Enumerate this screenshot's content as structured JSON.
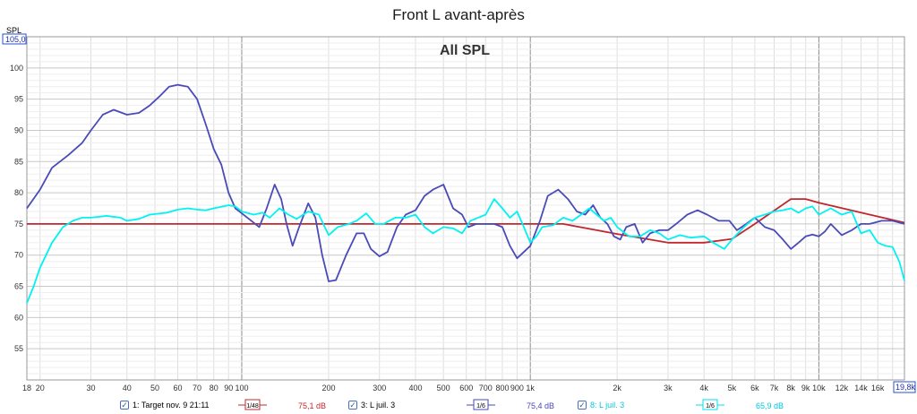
{
  "window_title": "Front L avant-après",
  "chart_data": {
    "type": "line",
    "title": "All SPL",
    "ylabel": "SPL",
    "x_scale": "log",
    "xlim": [
      18,
      19800
    ],
    "ylim": [
      50,
      105
    ],
    "y_max_box": "105,0",
    "grid": true,
    "y_ticks": [
      55,
      60,
      65,
      70,
      75,
      80,
      85,
      90,
      95,
      100
    ],
    "x_ticks": [
      {
        "v": 18,
        "label": "18"
      },
      {
        "v": 20,
        "label": "20"
      },
      {
        "v": 30,
        "label": "30"
      },
      {
        "v": 40,
        "label": "40"
      },
      {
        "v": 50,
        "label": "50"
      },
      {
        "v": 60,
        "label": "60"
      },
      {
        "v": 70,
        "label": "70"
      },
      {
        "v": 80,
        "label": "80"
      },
      {
        "v": 90,
        "label": "90"
      },
      {
        "v": 100,
        "label": "100"
      },
      {
        "v": 200,
        "label": "200"
      },
      {
        "v": 300,
        "label": "300"
      },
      {
        "v": 400,
        "label": "400"
      },
      {
        "v": 500,
        "label": "500"
      },
      {
        "v": 600,
        "label": "600"
      },
      {
        "v": 700,
        "label": "700"
      },
      {
        "v": 800,
        "label": "800"
      },
      {
        "v": 900,
        "label": "900"
      },
      {
        "v": 1000,
        "label": "1k"
      },
      {
        "v": 2000,
        "label": "2k"
      },
      {
        "v": 3000,
        "label": "3k"
      },
      {
        "v": 4000,
        "label": "4k"
      },
      {
        "v": 5000,
        "label": "5k"
      },
      {
        "v": 6000,
        "label": "6k"
      },
      {
        "v": 7000,
        "label": "7k"
      },
      {
        "v": 8000,
        "label": "8k"
      },
      {
        "v": 9000,
        "label": "9k"
      },
      {
        "v": 10000,
        "label": "10k"
      },
      {
        "v": 12000,
        "label": "12k"
      },
      {
        "v": 14000,
        "label": "14k"
      },
      {
        "v": 16000,
        "label": "16k"
      }
    ],
    "x_max_box": "19,8k",
    "series": [
      {
        "name": "1: Target nov. 9 21:11",
        "color": "#c0282d",
        "smoothing": "1/48",
        "value": "75,1 dB",
        "points": [
          [
            18,
            75
          ],
          [
            1300,
            75
          ],
          [
            2000,
            73.4
          ],
          [
            3000,
            72
          ],
          [
            4000,
            72
          ],
          [
            5000,
            72.6
          ],
          [
            6000,
            75
          ],
          [
            8000,
            79
          ],
          [
            9000,
            79
          ],
          [
            10000,
            78.4
          ],
          [
            15000,
            76.5
          ],
          [
            19800,
            75.2
          ]
        ]
      },
      {
        "name": "3: L juil. 3",
        "color": "#4a4ab8",
        "smoothing": "1/6",
        "value": "75,4 dB",
        "points": [
          [
            18,
            77.5
          ],
          [
            20,
            80.5
          ],
          [
            22,
            84
          ],
          [
            25,
            86
          ],
          [
            28,
            88
          ],
          [
            30,
            90
          ],
          [
            33,
            92.5
          ],
          [
            36,
            93.3
          ],
          [
            40,
            92.5
          ],
          [
            44,
            92.8
          ],
          [
            48,
            94
          ],
          [
            52,
            95.5
          ],
          [
            56,
            97
          ],
          [
            60,
            97.3
          ],
          [
            65,
            97
          ],
          [
            70,
            95
          ],
          [
            75,
            91
          ],
          [
            80,
            87
          ],
          [
            85,
            84.5
          ],
          [
            90,
            80
          ],
          [
            95,
            77.5
          ],
          [
            100,
            76.7
          ],
          [
            108,
            75.5
          ],
          [
            115,
            74.5
          ],
          [
            122,
            77.5
          ],
          [
            130,
            81.3
          ],
          [
            137,
            79
          ],
          [
            143,
            75
          ],
          [
            150,
            71.5
          ],
          [
            158,
            74.5
          ],
          [
            170,
            78.3
          ],
          [
            180,
            76
          ],
          [
            190,
            70
          ],
          [
            200,
            65.8
          ],
          [
            212,
            66
          ],
          [
            230,
            70
          ],
          [
            250,
            73.5
          ],
          [
            265,
            73.5
          ],
          [
            280,
            71
          ],
          [
            300,
            69.8
          ],
          [
            320,
            70.5
          ],
          [
            345,
            74.5
          ],
          [
            370,
            76.5
          ],
          [
            400,
            77.2
          ],
          [
            430,
            79.5
          ],
          [
            460,
            80.5
          ],
          [
            500,
            81.3
          ],
          [
            540,
            77.5
          ],
          [
            580,
            76.5
          ],
          [
            610,
            74.5
          ],
          [
            650,
            75
          ],
          [
            700,
            75
          ],
          [
            750,
            75
          ],
          [
            800,
            74.5
          ],
          [
            850,
            71.5
          ],
          [
            900,
            69.5
          ],
          [
            950,
            70.5
          ],
          [
            1000,
            71.5
          ],
          [
            1080,
            75.5
          ],
          [
            1150,
            79.5
          ],
          [
            1250,
            80.5
          ],
          [
            1350,
            79
          ],
          [
            1450,
            77
          ],
          [
            1550,
            76.5
          ],
          [
            1650,
            78
          ],
          [
            1750,
            76
          ],
          [
            1850,
            75
          ],
          [
            1950,
            73
          ],
          [
            2050,
            72.5
          ],
          [
            2150,
            74.5
          ],
          [
            2300,
            75
          ],
          [
            2450,
            72
          ],
          [
            2600,
            73.5
          ],
          [
            2800,
            74
          ],
          [
            3000,
            74
          ],
          [
            3200,
            75
          ],
          [
            3500,
            76.5
          ],
          [
            3800,
            77.2
          ],
          [
            4100,
            76.5
          ],
          [
            4500,
            75.5
          ],
          [
            4900,
            75.5
          ],
          [
            5200,
            74
          ],
          [
            5600,
            75
          ],
          [
            6000,
            76
          ],
          [
            6500,
            74.5
          ],
          [
            7000,
            74
          ],
          [
            7500,
            72.5
          ],
          [
            8000,
            71
          ],
          [
            8500,
            72
          ],
          [
            9000,
            73
          ],
          [
            9500,
            73.3
          ],
          [
            10000,
            73
          ],
          [
            10500,
            73.8
          ],
          [
            11000,
            75
          ],
          [
            12000,
            73.2
          ],
          [
            13000,
            74
          ],
          [
            14000,
            75
          ],
          [
            15000,
            75
          ],
          [
            16500,
            75.5
          ],
          [
            18000,
            75.5
          ],
          [
            19800,
            75
          ]
        ]
      },
      {
        "name": "8: L juil. 3",
        "color": "#00f2f2",
        "smoothing": "1/6",
        "value": "65,9 dB",
        "points": [
          [
            18,
            62.3
          ],
          [
            19,
            65
          ],
          [
            20,
            68
          ],
          [
            22,
            72
          ],
          [
            24,
            74.5
          ],
          [
            26,
            75.5
          ],
          [
            28,
            76
          ],
          [
            30,
            76
          ],
          [
            34,
            76.3
          ],
          [
            38,
            76
          ],
          [
            40,
            75.5
          ],
          [
            44,
            75.8
          ],
          [
            48,
            76.5
          ],
          [
            55,
            76.8
          ],
          [
            60,
            77.3
          ],
          [
            65,
            77.5
          ],
          [
            70,
            77.3
          ],
          [
            75,
            77.2
          ],
          [
            80,
            77.5
          ],
          [
            90,
            78
          ],
          [
            95,
            77.8
          ],
          [
            100,
            77
          ],
          [
            110,
            76.5
          ],
          [
            118,
            76.8
          ],
          [
            125,
            76
          ],
          [
            135,
            77.5
          ],
          [
            145,
            76.5
          ],
          [
            155,
            75.8
          ],
          [
            170,
            77
          ],
          [
            185,
            76.5
          ],
          [
            200,
            73.2
          ],
          [
            215,
            74.5
          ],
          [
            235,
            75
          ],
          [
            250,
            75.5
          ],
          [
            270,
            76.7
          ],
          [
            290,
            75
          ],
          [
            310,
            75
          ],
          [
            340,
            76
          ],
          [
            370,
            76
          ],
          [
            400,
            76.5
          ],
          [
            430,
            74.5
          ],
          [
            460,
            73.5
          ],
          [
            500,
            74.5
          ],
          [
            540,
            74.3
          ],
          [
            580,
            73.5
          ],
          [
            620,
            75.5
          ],
          [
            660,
            76
          ],
          [
            700,
            76.5
          ],
          [
            750,
            79
          ],
          [
            800,
            77.5
          ],
          [
            850,
            76
          ],
          [
            900,
            77
          ],
          [
            950,
            74.5
          ],
          [
            1000,
            72
          ],
          [
            1050,
            73
          ],
          [
            1100,
            74.5
          ],
          [
            1200,
            74.8
          ],
          [
            1300,
            76
          ],
          [
            1400,
            75.5
          ],
          [
            1500,
            76.5
          ],
          [
            1600,
            77.5
          ],
          [
            1700,
            76.5
          ],
          [
            1800,
            75.5
          ],
          [
            1900,
            76
          ],
          [
            2000,
            74.5
          ],
          [
            2200,
            73
          ],
          [
            2400,
            73
          ],
          [
            2600,
            74
          ],
          [
            2800,
            73.5
          ],
          [
            3000,
            72.5
          ],
          [
            3300,
            73.2
          ],
          [
            3600,
            72.8
          ],
          [
            4000,
            73
          ],
          [
            4300,
            72
          ],
          [
            4700,
            71
          ],
          [
            5000,
            72.5
          ],
          [
            5500,
            74.5
          ],
          [
            6000,
            76
          ],
          [
            6500,
            76.5
          ],
          [
            7000,
            77
          ],
          [
            7500,
            77.2
          ],
          [
            8000,
            77.5
          ],
          [
            8500,
            76.8
          ],
          [
            9000,
            77.5
          ],
          [
            9500,
            77.8
          ],
          [
            10000,
            76.5
          ],
          [
            11000,
            77.5
          ],
          [
            12000,
            76.5
          ],
          [
            13000,
            77
          ],
          [
            14000,
            73.5
          ],
          [
            15000,
            74
          ],
          [
            16000,
            72
          ],
          [
            17000,
            71.5
          ],
          [
            18000,
            71.3
          ],
          [
            19000,
            69
          ],
          [
            19800,
            65.9
          ]
        ]
      }
    ]
  }
}
